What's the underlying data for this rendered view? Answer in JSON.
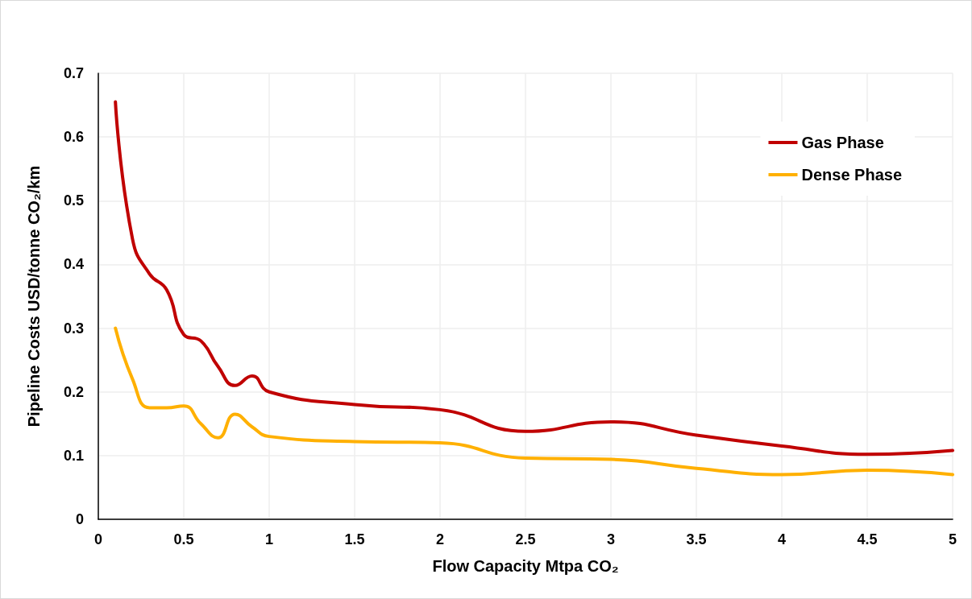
{
  "chart_data": {
    "type": "line",
    "xlabel": "Flow Capacity Mtpa CO₂",
    "ylabel": "Pipeline Costs USD/tonne CO₂/km",
    "x": [
      0.1,
      0.2,
      0.3,
      0.4,
      0.5,
      0.6,
      0.7,
      0.8,
      0.9,
      1,
      1.5,
      2,
      2.5,
      3,
      3.5,
      4,
      4.5,
      5
    ],
    "series": [
      {
        "name": "Gas Phase",
        "color": "#c00000",
        "values": [
          0.655,
          0.44,
          0.385,
          0.36,
          0.29,
          0.28,
          0.24,
          0.21,
          0.225,
          0.2,
          0.18,
          0.172,
          0.138,
          0.153,
          0.132,
          0.115,
          0.102,
          0.108
        ]
      },
      {
        "name": "Dense Phase",
        "color": "#ffb000",
        "values": [
          0.3,
          0.22,
          0.175,
          0.175,
          0.178,
          0.15,
          0.128,
          0.165,
          0.145,
          0.13,
          0.122,
          0.12,
          0.096,
          0.094,
          0.08,
          0.07,
          0.077,
          0.07
        ]
      }
    ],
    "xlim": [
      0,
      5
    ],
    "xticks": [
      0,
      0.5,
      1,
      1.5,
      2,
      2.5,
      3,
      3.5,
      4,
      4.5,
      5
    ],
    "ylim": [
      0,
      0.7
    ],
    "yticks": [
      0,
      0.1,
      0.2,
      0.3,
      0.4,
      0.5,
      0.6,
      0.7
    ],
    "grid": true,
    "legend": "top right",
    "marker": "none",
    "line_style": "solid"
  }
}
